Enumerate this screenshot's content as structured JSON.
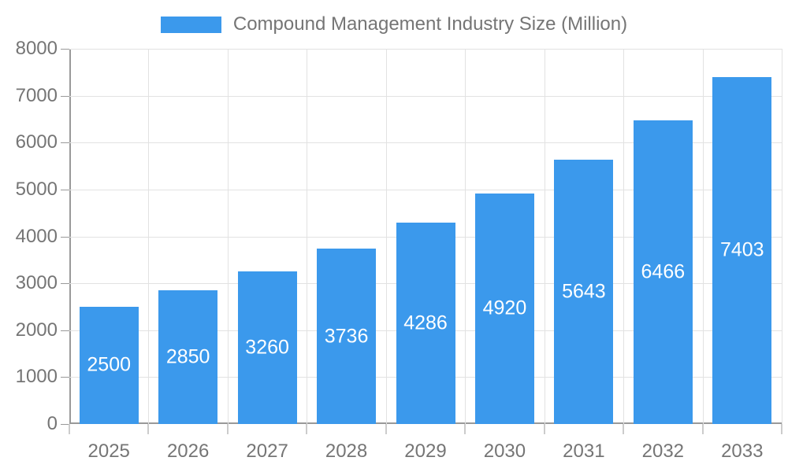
{
  "chart_data": {
    "type": "bar",
    "title": "Compound Management Industry Size (Million)",
    "series_name": "Compound Management Industry Size (Million)",
    "categories": [
      "2025",
      "2026",
      "2027",
      "2028",
      "2029",
      "2030",
      "2031",
      "2032",
      "2033"
    ],
    "values": [
      2500,
      2850,
      3260,
      3736,
      4286,
      4920,
      5643,
      6466,
      7403
    ],
    "bar_value_labels": [
      "2500",
      "2850",
      "3260",
      "3736",
      "4286",
      "4920",
      "5643",
      "6466",
      "7403"
    ],
    "xlabel": "",
    "ylabel": "",
    "ylim": [
      0,
      8000
    ],
    "yticks": [
      0,
      1000,
      2000,
      3000,
      4000,
      5000,
      6000,
      7000,
      8000
    ],
    "ytick_labels": [
      "0",
      "1000",
      "2000",
      "3000",
      "4000",
      "5000",
      "6000",
      "7000",
      "8000"
    ],
    "grid": true,
    "legend_position": "top",
    "value_labels_position": "inside-center"
  },
  "legend": {
    "label": "Compound Management Industry Size (Million)"
  },
  "colors": {
    "bar": "#3b99ec",
    "grid": "#e2e2e2",
    "axis": "#999999",
    "tick_text": "#757575",
    "bar_label_text": "#ffffff",
    "background": "#ffffff"
  }
}
